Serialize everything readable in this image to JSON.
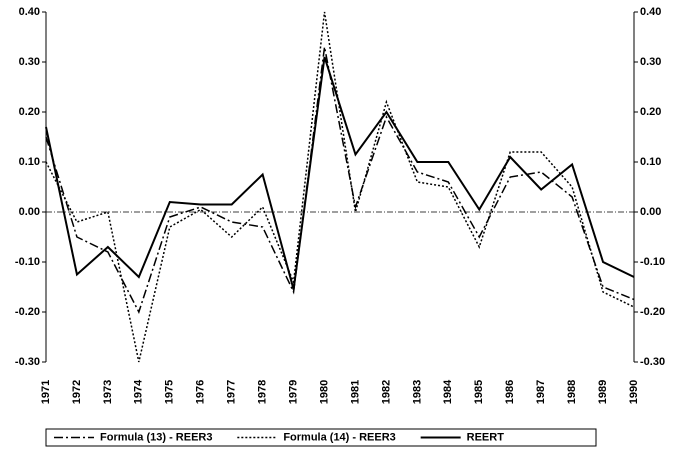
{
  "chart_data": {
    "type": "line",
    "categories": [
      "1971",
      "1972",
      "1973",
      "1974",
      "1975",
      "1976",
      "1977",
      "1978",
      "1979",
      "1980",
      "1981",
      "1982",
      "1983",
      "1984",
      "1985",
      "1986",
      "1987",
      "1988",
      "1989",
      "1990"
    ],
    "series": [
      {
        "name": "Formula (13) - REER3",
        "color": "#000000",
        "dash": "dash-dot",
        "values": [
          0.15,
          -0.05,
          -0.08,
          -0.2,
          -0.01,
          0.01,
          -0.02,
          -0.03,
          -0.16,
          0.33,
          0.01,
          0.19,
          0.08,
          0.06,
          -0.05,
          0.07,
          0.08,
          0.03,
          -0.15,
          -0.175
        ]
      },
      {
        "name": "Formula (14) - REER3",
        "color": "#000000",
        "dash": "dotted",
        "values": [
          0.1,
          -0.02,
          0.0,
          -0.3,
          -0.03,
          0.005,
          -0.05,
          0.01,
          -0.14,
          0.4,
          0.0,
          0.22,
          0.06,
          0.05,
          -0.07,
          0.12,
          0.12,
          0.05,
          -0.16,
          -0.19
        ]
      },
      {
        "name": "REERT",
        "color": "#000000",
        "dash": "solid",
        "values": [
          0.17,
          -0.125,
          -0.07,
          -0.13,
          0.02,
          0.015,
          0.015,
          0.075,
          -0.155,
          0.31,
          0.115,
          0.2,
          0.1,
          0.1,
          0.005,
          0.11,
          0.045,
          0.095,
          -0.1,
          -0.13
        ]
      }
    ],
    "ylim": [
      -0.3,
      0.4
    ],
    "yticks": [
      {
        "value": 0.4,
        "label": "0.40"
      },
      {
        "value": 0.3,
        "label": "0.30"
      },
      {
        "value": 0.2,
        "label": "0.20"
      },
      {
        "value": 0.1,
        "label": "0.10"
      },
      {
        "value": 0,
        "label": "0.00"
      },
      {
        "value": -0.1,
        "label": "-0.10"
      },
      {
        "value": -0.2,
        "label": "-0.20"
      },
      {
        "value": -0.3,
        "label": "-0.30"
      }
    ],
    "y2lim": [
      -0.3,
      0.4
    ],
    "y2ticks": [
      {
        "value": 0.4,
        "label": "0.40"
      },
      {
        "value": 0.3,
        "label": "0.30"
      },
      {
        "value": 0.2,
        "label": "0.20"
      },
      {
        "value": 0.1,
        "label": "0.10"
      },
      {
        "value": 0,
        "label": "0.00"
      },
      {
        "value": -0.1,
        "label": "-0.10"
      },
      {
        "value": -0.2,
        "label": "-0.20"
      },
      {
        "value": -0.3,
        "label": "-0.30"
      }
    ],
    "zero_line": true,
    "legend": "bottom"
  }
}
